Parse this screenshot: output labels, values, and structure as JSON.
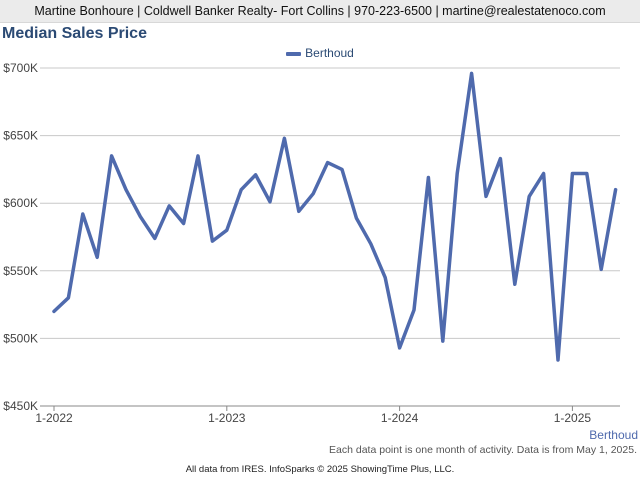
{
  "header": {
    "contact": "Martine Bonhoure | Coldwell Banker Realty- Fort Collins | 970-223-6500 | martine@realestatenoco.com"
  },
  "footer": {
    "note": "Each data point is one month of activity. Data is from May 1, 2025.",
    "source": "All data from IRES. InfoSparks © 2025 ShowingTime Plus, LLC."
  },
  "colors": {
    "series": "#4f6aad",
    "title": "#2b4a74",
    "grid": "#c8c8c8"
  },
  "chart_data": {
    "type": "line",
    "title": "Median Sales Price",
    "grid": true,
    "legend": "top-center",
    "ylim": [
      450000,
      700000
    ],
    "yticks": [
      450000,
      500000,
      550000,
      600000,
      650000,
      700000
    ],
    "ytick_labels": [
      "$450K",
      "$500K",
      "$550K",
      "$600K",
      "$650K",
      "$700K"
    ],
    "xlim": [
      "2022-01",
      "2025-04"
    ],
    "xtick_labels": [
      "1-2022",
      "1-2023",
      "1-2024",
      "1-2025"
    ],
    "x": [
      "2022-01",
      "2022-02",
      "2022-03",
      "2022-04",
      "2022-05",
      "2022-06",
      "2022-07",
      "2022-08",
      "2022-09",
      "2022-10",
      "2022-11",
      "2022-12",
      "2023-01",
      "2023-02",
      "2023-03",
      "2023-04",
      "2023-05",
      "2023-06",
      "2023-07",
      "2023-08",
      "2023-09",
      "2023-10",
      "2023-11",
      "2023-12",
      "2024-01",
      "2024-02",
      "2024-03",
      "2024-04",
      "2024-05",
      "2024-06",
      "2024-07",
      "2024-08",
      "2024-09",
      "2024-10",
      "2024-11",
      "2024-12",
      "2025-01",
      "2025-02",
      "2025-03",
      "2025-04"
    ],
    "series": [
      {
        "name": "Berthoud",
        "values": [
          520000,
          530000,
          592000,
          560000,
          635000,
          610000,
          590000,
          574000,
          598000,
          585000,
          635000,
          572000,
          580000,
          610000,
          621000,
          601000,
          648000,
          594000,
          607000,
          630000,
          625000,
          589000,
          570000,
          545000,
          493000,
          521000,
          619000,
          498000,
          622000,
          696000,
          605000,
          633000,
          540000,
          605000,
          622000,
          484000,
          622000,
          622000,
          551000,
          610000
        ]
      }
    ],
    "annotation": "Berthoud"
  }
}
